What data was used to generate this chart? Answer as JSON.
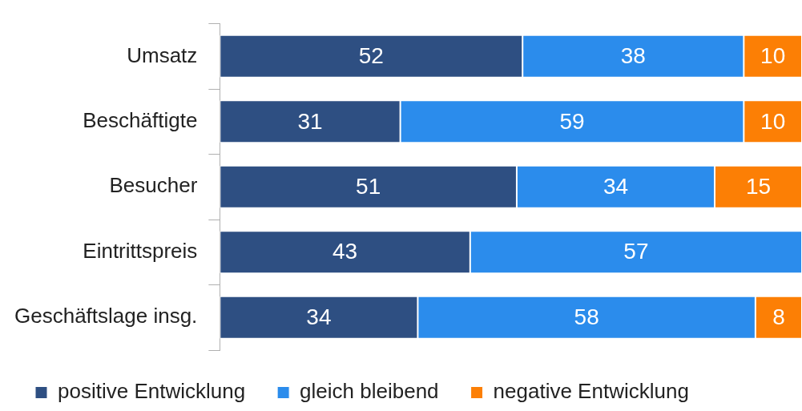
{
  "chart_data": {
    "type": "bar",
    "orientation": "horizontal",
    "stacked": true,
    "categories": [
      "Umsatz",
      "Beschäftigte",
      "Besucher",
      "Eintrittspreis",
      "Geschäftslage insg."
    ],
    "series": [
      {
        "name": "positive Entwicklung",
        "color": "#2e4f82",
        "values": [
          52,
          31,
          51,
          43,
          34
        ]
      },
      {
        "name": "gleich bleibend",
        "color": "#2b8cec",
        "values": [
          38,
          59,
          34,
          57,
          58
        ]
      },
      {
        "name": "negative Entwicklung",
        "color": "#fc7f05",
        "values": [
          10,
          10,
          15,
          null,
          8
        ]
      }
    ],
    "xlim": [
      0,
      100
    ],
    "tick_labels": "y",
    "data_labels": true,
    "legend": "bottom",
    "grid": false
  }
}
